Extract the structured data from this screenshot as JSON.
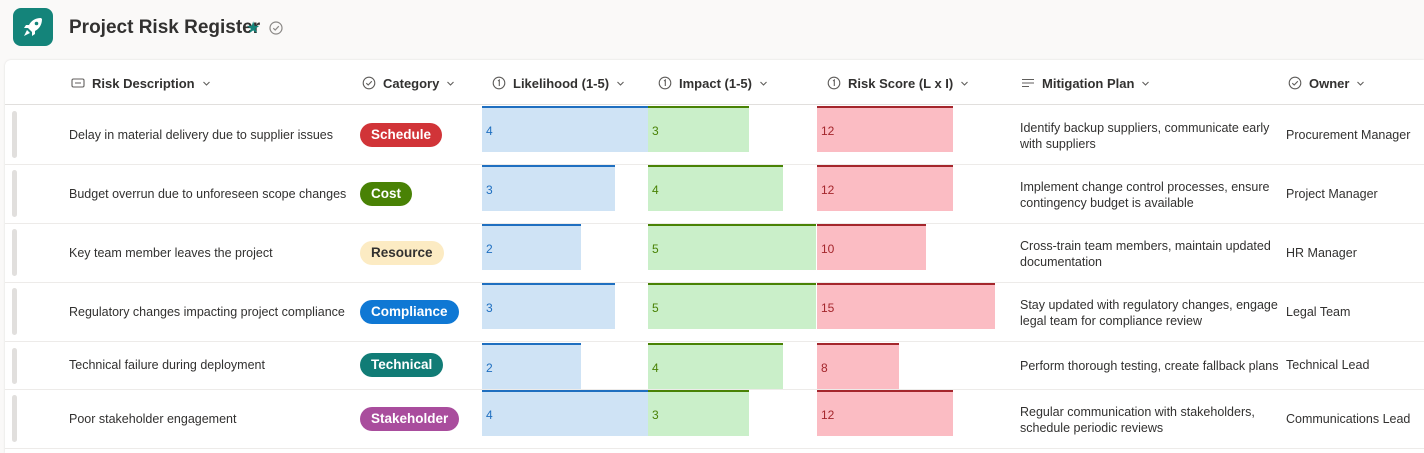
{
  "app": {
    "title": "Project Risk Register"
  },
  "columns": [
    {
      "label": "Risk Description",
      "icon": "text-field-icon"
    },
    {
      "label": "Category",
      "icon": "choice-icon"
    },
    {
      "label": "Likelihood (1-5)",
      "icon": "number-icon"
    },
    {
      "label": "Impact (1-5)",
      "icon": "number-icon"
    },
    {
      "label": "Risk Score (L x I)",
      "icon": "number-icon"
    },
    {
      "label": "Mitigation Plan",
      "icon": "multiline-text-icon"
    },
    {
      "label": "Owner",
      "icon": "choice-icon"
    }
  ],
  "rows": [
    {
      "description": "Delay in material delivery due to supplier issues",
      "category": "Schedule",
      "likelihood": "4",
      "impact": "3",
      "score": "12",
      "mitigation": "Identify backup suppliers, communicate early with suppliers",
      "owner": "Procurement Manager"
    },
    {
      "description": "Budget overrun due to unforeseen scope changes",
      "category": "Cost",
      "likelihood": "3",
      "impact": "4",
      "score": "12",
      "mitigation": "Implement change control processes, ensure contingency budget is available",
      "owner": "Project Manager"
    },
    {
      "description": "Key team member leaves the project",
      "category": "Resource",
      "likelihood": "2",
      "impact": "5",
      "score": "10",
      "mitigation": "Cross-train team members, maintain updated documentation",
      "owner": "HR Manager"
    },
    {
      "description": "Regulatory changes impacting project compliance",
      "category": "Compliance",
      "likelihood": "3",
      "impact": "5",
      "score": "15",
      "mitigation": "Stay updated with regulatory changes, engage legal team for compliance review",
      "owner": "Legal Team"
    },
    {
      "description": "Technical failure during deployment",
      "category": "Technical",
      "likelihood": "2",
      "impact": "4",
      "score": "8",
      "mitigation": "Perform thorough testing, create fallback plans",
      "owner": "Technical Lead"
    },
    {
      "description": "Poor stakeholder engagement",
      "category": "Stakeholder",
      "likelihood": "4",
      "impact": "3",
      "score": "12",
      "mitigation": "Regular communication with stakeholders, schedule periodic reviews",
      "owner": "Communications Lead"
    }
  ],
  "category_colors": {
    "Schedule": {
      "bg": "#d13438",
      "fg": "#ffffff"
    },
    "Cost": {
      "bg": "#498205",
      "fg": "#ffffff"
    },
    "Resource": {
      "bg": "#fcebc3",
      "fg": "#323130"
    },
    "Compliance": {
      "bg": "#0f78d4",
      "fg": "#ffffff"
    },
    "Technical": {
      "bg": "#117c76",
      "fg": "#ffffff"
    },
    "Stakeholder": {
      "bg": "#a94d9d",
      "fg": "#ffffff"
    }
  },
  "colors": {
    "accent": "#14847a",
    "likelihood_bar": "#cfe3f5",
    "impact_bar": "#caefc9",
    "score_bar": "#fbbcc3"
  }
}
